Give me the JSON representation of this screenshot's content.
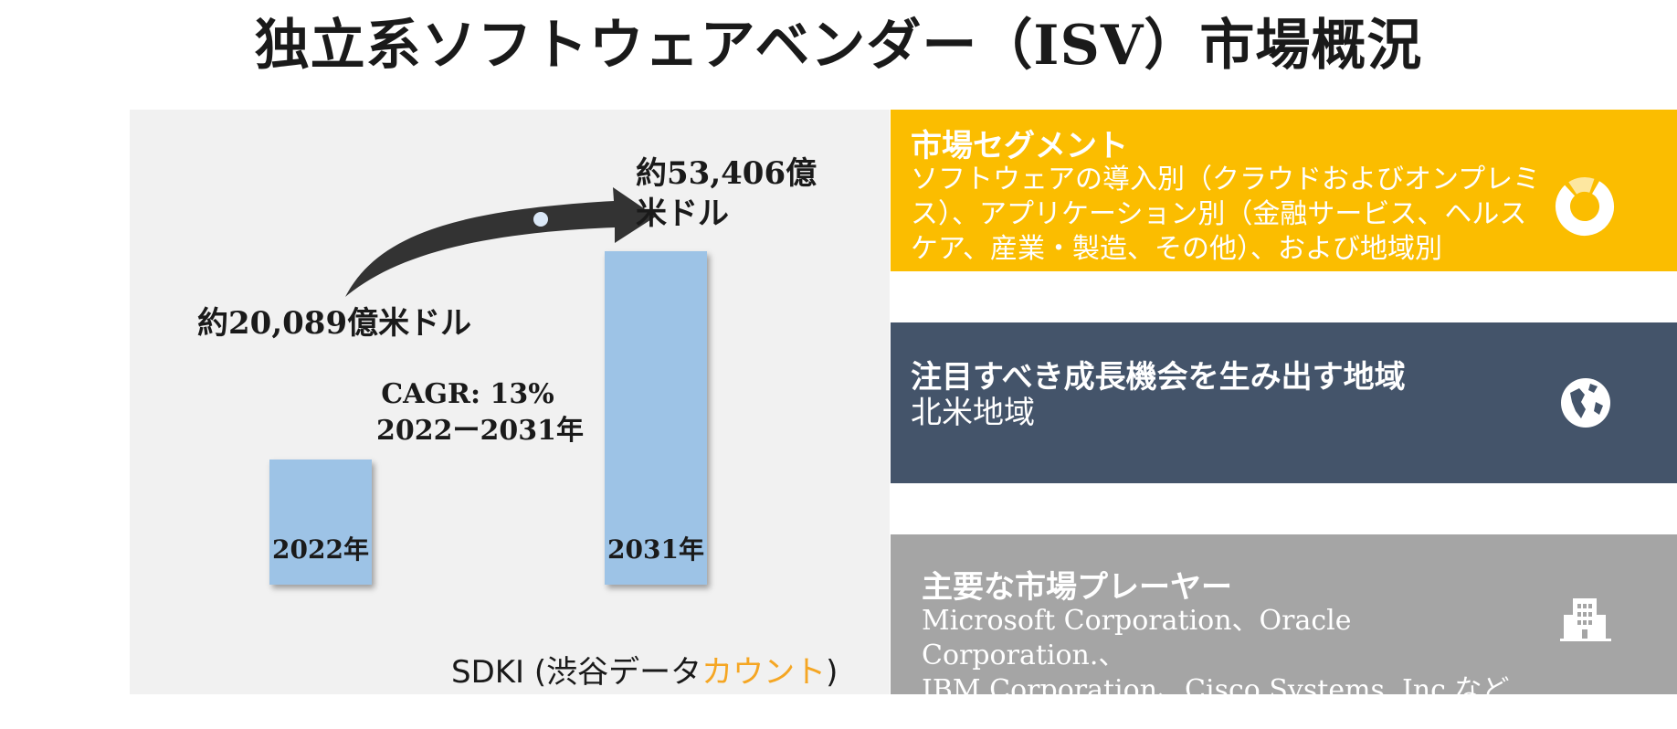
{
  "title": "独立系ソフトウェアベンダー（ISV）市場概況",
  "chart_data": {
    "type": "bar",
    "categories": [
      "2022年",
      "2031年"
    ],
    "values": [
      20089,
      53406
    ],
    "value_labels": [
      "約20,089億米ドル",
      "約53,406億米ドル"
    ],
    "cagr_line1": "CAGR: 13%",
    "cagr_line2": "2022ー2031年",
    "bar_color": "#9dc3e6"
  },
  "source": {
    "prefix": "SDKI (渋谷データ",
    "accent": "カウント",
    "suffix": ")"
  },
  "panels": {
    "segment": {
      "heading": "市場セグメント",
      "body": "ソフトウェアの導入別（クラウドおよびオンプレミス）、アプリケーション別（金融サービス、ヘルスケア、産業・製造、その他）、および地域別",
      "icon": "donut-chart-icon",
      "color": "#fbbd00"
    },
    "region": {
      "heading": "注目すべき成長機会を生み出す地域",
      "body": "北米地域",
      "icon": "globe-icon",
      "color": "#44546a"
    },
    "players": {
      "heading": "主要な市場プレーヤー",
      "body_line1": "Microsoft Corporation、Oracle Corporation.、",
      "body_line2": "IBM Corporation、Cisco Systems, Inc.など",
      "icon": "building-icon",
      "color": "#a5a5a5"
    }
  }
}
